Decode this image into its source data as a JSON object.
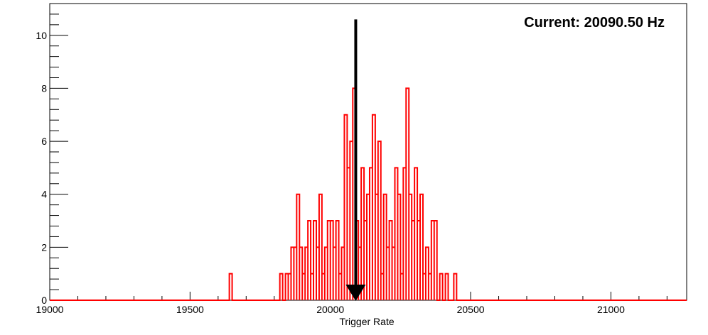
{
  "chart_data": {
    "type": "histogram",
    "xlabel": "Trigger Rate",
    "ylabel": "",
    "xlim": [
      19000,
      21270
    ],
    "ylim": [
      0,
      11.2
    ],
    "x_ticks": [
      19000,
      19500,
      20000,
      20500,
      21000
    ],
    "x_tick_labels": [
      "19000",
      "19500",
      "20000",
      "20500",
      "21000"
    ],
    "y_ticks": [
      0,
      2,
      4,
      6,
      8,
      10
    ],
    "y_tick_labels": [
      "0",
      "2",
      "4",
      "6",
      "8",
      "10"
    ],
    "bin_width": 10,
    "series_color": "#ff0000",
    "bins": [
      [
        19640,
        1
      ],
      [
        19820,
        1
      ],
      [
        19830,
        0
      ],
      [
        19840,
        1
      ],
      [
        19850,
        1
      ],
      [
        19860,
        2
      ],
      [
        19870,
        2
      ],
      [
        19880,
        4
      ],
      [
        19890,
        2
      ],
      [
        19900,
        1
      ],
      [
        19910,
        2
      ],
      [
        19920,
        3
      ],
      [
        19930,
        1
      ],
      [
        19940,
        3
      ],
      [
        19950,
        2
      ],
      [
        19960,
        4
      ],
      [
        19970,
        1
      ],
      [
        19980,
        2
      ],
      [
        19990,
        3
      ],
      [
        20000,
        3
      ],
      [
        20010,
        2
      ],
      [
        20020,
        3
      ],
      [
        20030,
        1
      ],
      [
        20040,
        2
      ],
      [
        20050,
        7
      ],
      [
        20060,
        5
      ],
      [
        20070,
        6
      ],
      [
        20080,
        8
      ],
      [
        20090,
        3
      ],
      [
        20100,
        2
      ],
      [
        20110,
        5
      ],
      [
        20120,
        3
      ],
      [
        20130,
        4
      ],
      [
        20140,
        5
      ],
      [
        20150,
        7
      ],
      [
        20160,
        4
      ],
      [
        20170,
        6
      ],
      [
        20180,
        1
      ],
      [
        20190,
        4
      ],
      [
        20200,
        2
      ],
      [
        20210,
        3
      ],
      [
        20220,
        2
      ],
      [
        20230,
        5
      ],
      [
        20240,
        4
      ],
      [
        20250,
        1
      ],
      [
        20260,
        5
      ],
      [
        20270,
        8
      ],
      [
        20280,
        4
      ],
      [
        20290,
        3
      ],
      [
        20300,
        5
      ],
      [
        20310,
        3
      ],
      [
        20320,
        4
      ],
      [
        20330,
        1
      ],
      [
        20340,
        2
      ],
      [
        20350,
        1
      ],
      [
        20360,
        3
      ],
      [
        20370,
        3
      ],
      [
        20380,
        0
      ],
      [
        20390,
        1
      ],
      [
        20400,
        0
      ],
      [
        20410,
        1
      ],
      [
        20420,
        0
      ],
      [
        20430,
        0
      ],
      [
        20440,
        1
      ]
    ],
    "marker": {
      "value": 20090.5,
      "color": "#000000"
    },
    "annotation": "Current: 20090.50 Hz"
  }
}
